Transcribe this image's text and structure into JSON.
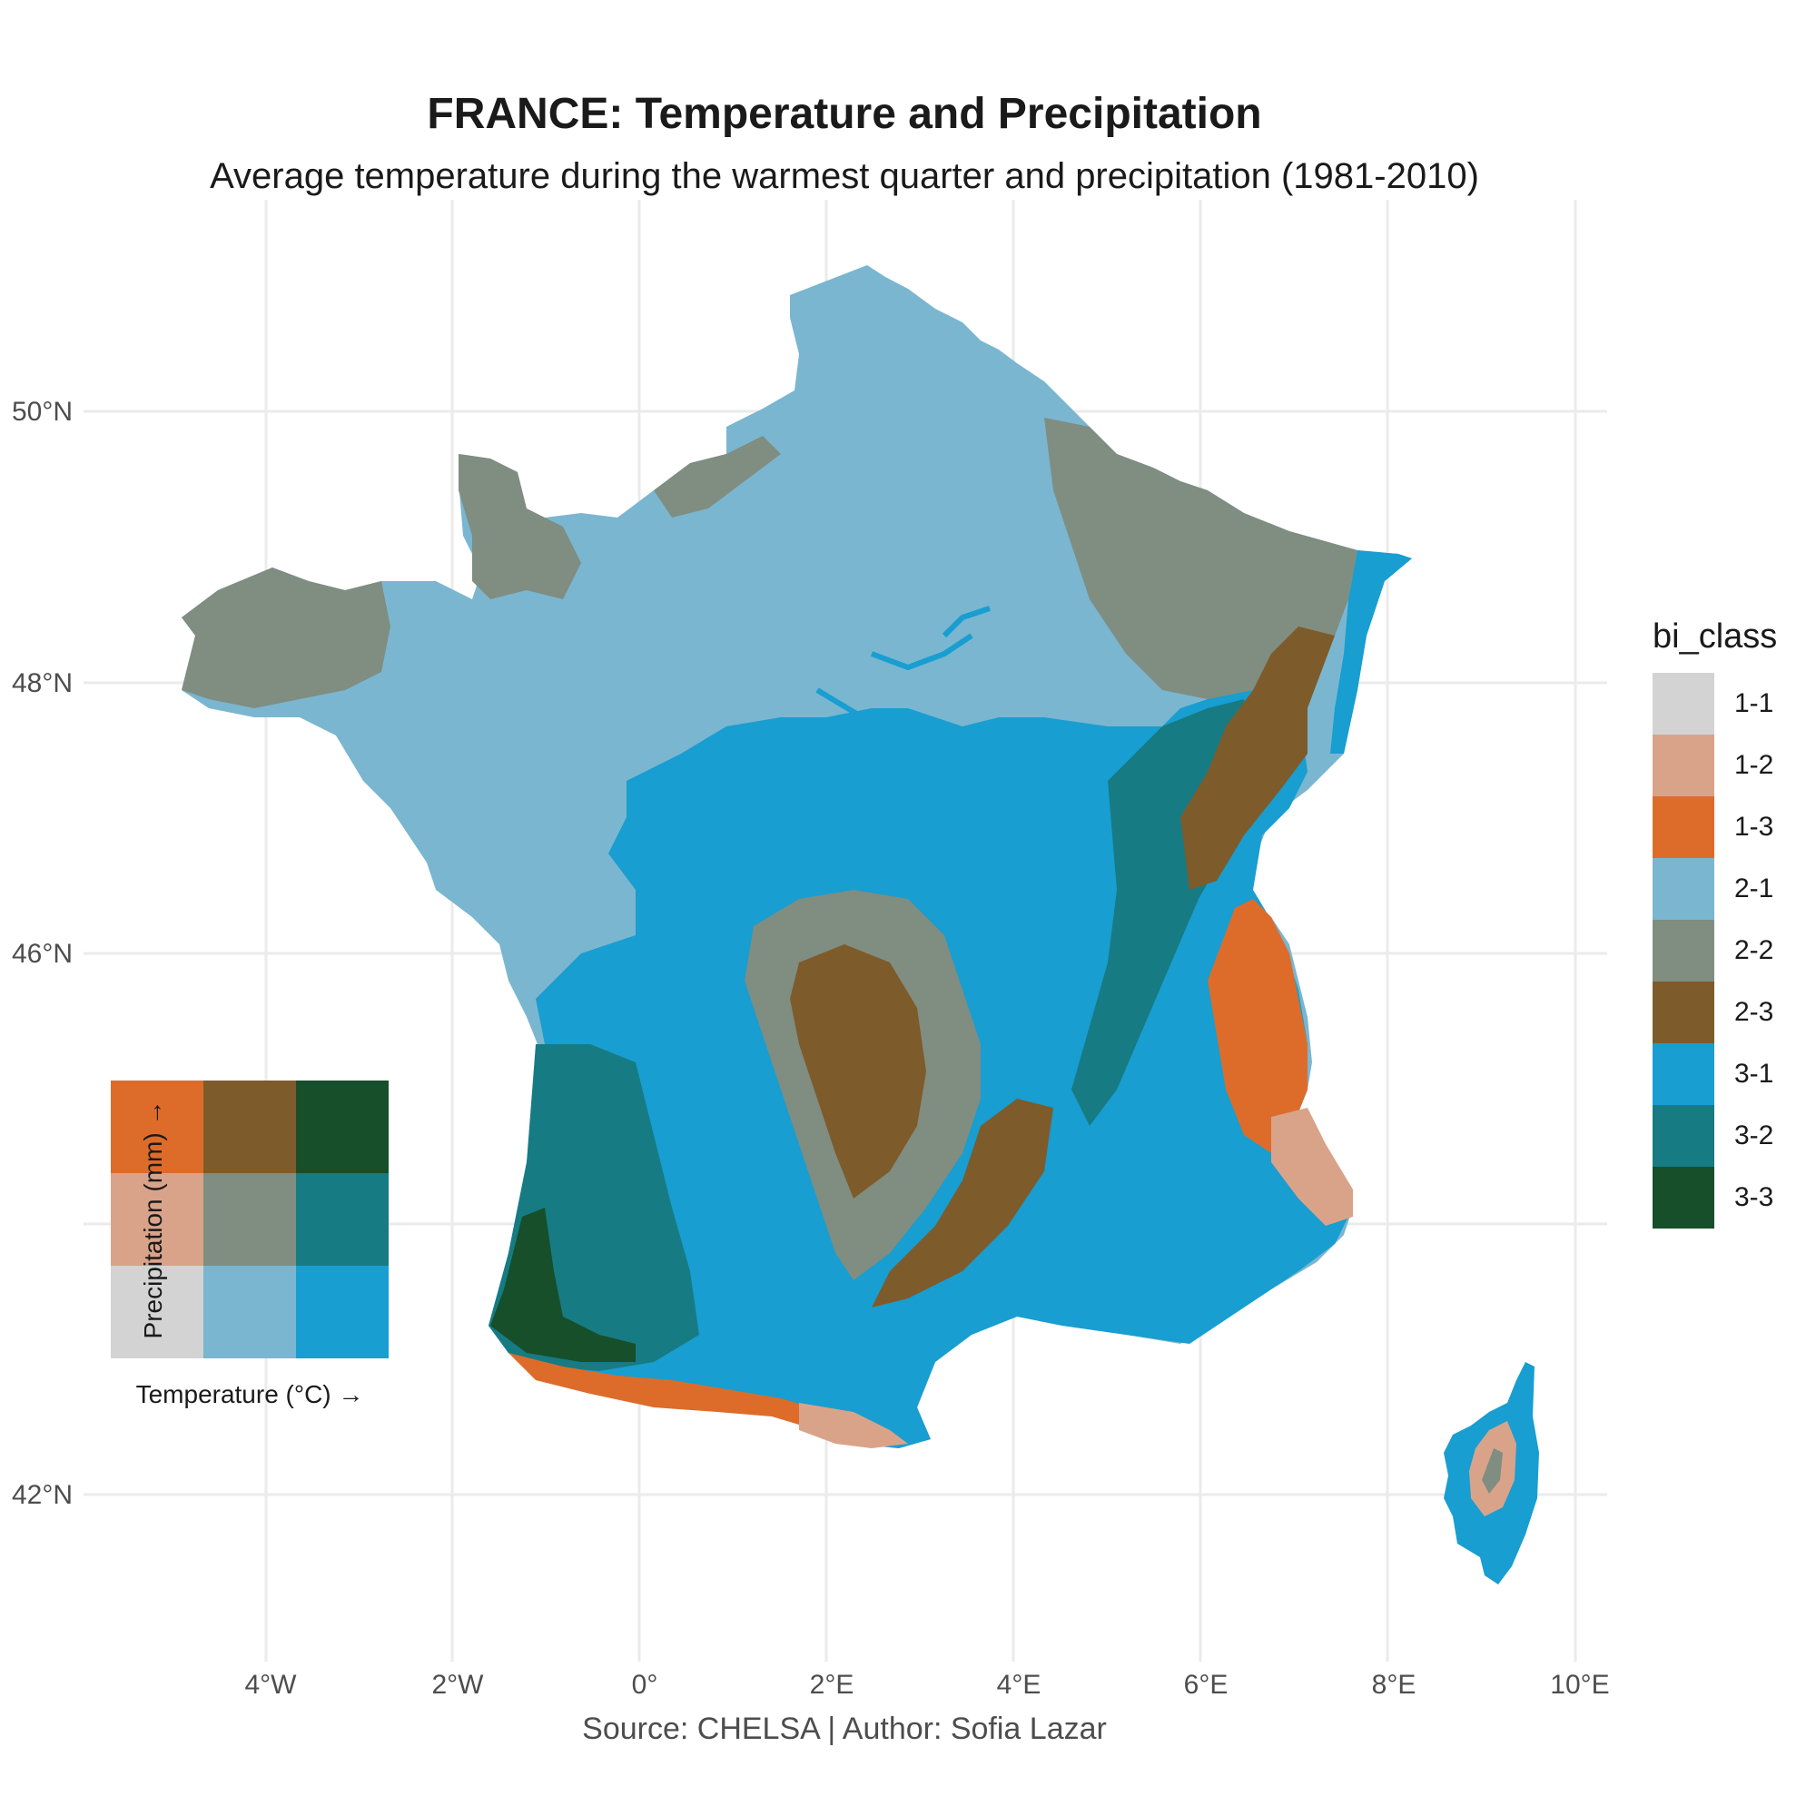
{
  "title": "FRANCE: Temperature and Precipitation",
  "subtitle": "Average temperature during the warmest quarter and precipitation (1981-2010)",
  "caption": "Source: CHELSA | Author: Sofia Lazar",
  "axes": {
    "x_ticks": [
      "4°W",
      "2°W",
      "0°",
      "2°E",
      "4°E",
      "6°E",
      "8°E",
      "10°E"
    ],
    "y_ticks": [
      "50°N",
      "48°N",
      "46°N",
      "42°N"
    ]
  },
  "legend": {
    "title": "bi_class",
    "items": [
      {
        "label": "1-1",
        "color": "#d3d3d3"
      },
      {
        "label": "1-2",
        "color": "#d9a38a"
      },
      {
        "label": "1-3",
        "color": "#dd6c2b"
      },
      {
        "label": "2-1",
        "color": "#7ab6d0"
      },
      {
        "label": "2-2",
        "color": "#808d81"
      },
      {
        "label": "2-3",
        "color": "#7e5b2a"
      },
      {
        "label": "3-1",
        "color": "#189ed0"
      },
      {
        "label": "3-2",
        "color": "#177b84"
      },
      {
        "label": "3-3",
        "color": "#164f2a"
      }
    ]
  },
  "bivariate_legend": {
    "x_label": "Temperature (°C) →",
    "y_label": "Precipitation (mm) →",
    "grid_colors": [
      [
        "#dd6c2b",
        "#7e5b2a",
        "#164f2a"
      ],
      [
        "#d9a38a",
        "#808d81",
        "#177b84"
      ],
      [
        "#d3d3d3",
        "#7ab6d0",
        "#189ed0"
      ]
    ]
  }
}
